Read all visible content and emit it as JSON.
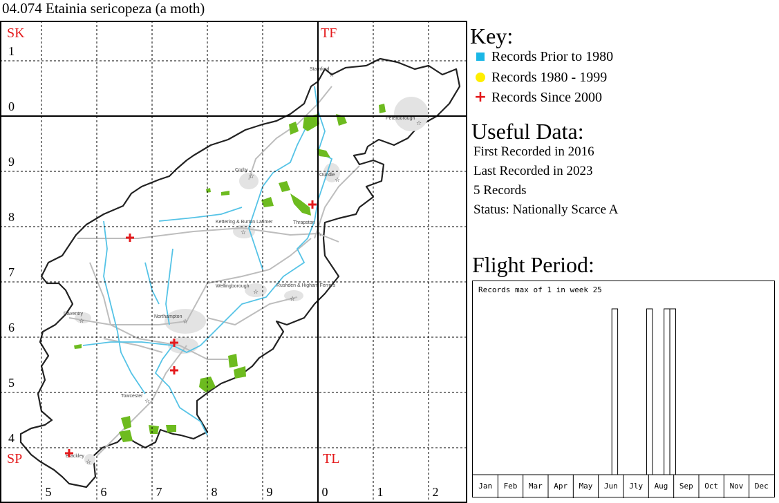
{
  "title": "04.074 Etainia sericopeza (a moth)",
  "grid": {
    "square_labels": [
      "SK",
      "TF",
      "SP",
      "TL"
    ],
    "easting_labels": [
      "5",
      "6",
      "7",
      "8",
      "9",
      "0",
      "1",
      "2"
    ],
    "northing_labels": [
      "1",
      "0",
      "9",
      "8",
      "7",
      "6",
      "5",
      "4"
    ]
  },
  "towns": [
    "Stamford",
    "Peterborough",
    "Corby",
    "Oundle",
    "Kettering & Burton Latimer",
    "Thrapston",
    "Wellingborough",
    "Rushden & Higham Ferrers",
    "Daventry",
    "Northampton",
    "Towcester",
    "Brackley"
  ],
  "records_since_2000": [
    {
      "grid_ref": "SP 66 78",
      "easting": 466,
      "northing": 278
    },
    {
      "grid_ref": "SP 74 59",
      "easting": 474,
      "northing": 259
    },
    {
      "grid_ref": "SP 74 54",
      "easting": 474,
      "northing": 254
    },
    {
      "grid_ref": "SP 55 39",
      "easting": 455,
      "northing": 239
    },
    {
      "grid_ref": "SP 99 84",
      "easting": 499,
      "northing": 284
    }
  ],
  "key": {
    "heading": "Key:",
    "items": [
      {
        "label": "Records Prior to 1980",
        "icon": "square",
        "color": "#1bb7e6"
      },
      {
        "label": "Records 1980 - 1999",
        "icon": "circle",
        "color": "#ffee00"
      },
      {
        "label": "Records Since 2000",
        "icon": "plus",
        "color": "#e41a1c"
      }
    ]
  },
  "useful": {
    "heading": "Useful Data:",
    "first": "First Recorded in 2016",
    "last": "Last Recorded in 2023",
    "count": "5 Records",
    "status": "Status: Nationally Scarce A"
  },
  "flight": {
    "heading": "Flight Period:",
    "note": "Records max of 1 in week 25",
    "months": [
      "Jan",
      "Feb",
      "Mar",
      "Apr",
      "May",
      "Jun",
      "Jly",
      "Aug",
      "Sep",
      "Oct",
      "Nov",
      "Dec"
    ]
  },
  "chart_data": {
    "type": "bar",
    "title": "Records max of 1 in week 25",
    "xlabel": "",
    "ylabel": "",
    "x": [
      25,
      31,
      34,
      35
    ],
    "values": [
      1,
      1,
      1,
      1
    ],
    "ylim": [
      0,
      1
    ],
    "week_range": [
      1,
      52
    ]
  }
}
